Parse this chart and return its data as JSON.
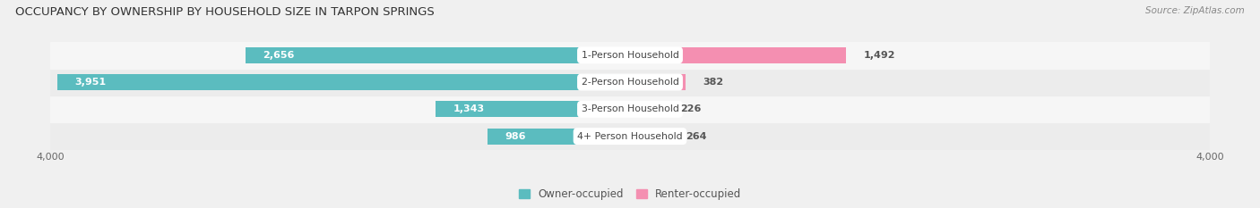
{
  "title": "OCCUPANCY BY OWNERSHIP BY HOUSEHOLD SIZE IN TARPON SPRINGS",
  "source": "Source: ZipAtlas.com",
  "categories": [
    "4+ Person Household",
    "3-Person Household",
    "2-Person Household",
    "1-Person Household"
  ],
  "owner_values": [
    986,
    1343,
    3951,
    2656
  ],
  "renter_values": [
    264,
    226,
    382,
    1492
  ],
  "max_scale": 4000,
  "owner_color": "#5bbcbf",
  "renter_color": "#f48fb1",
  "bg_color_even": "#ebebeb",
  "bg_color_odd": "#f5f5f5",
  "bar_height": 0.6,
  "row_colors": [
    "#ececec",
    "#f6f6f6",
    "#ececec",
    "#f6f6f6"
  ]
}
